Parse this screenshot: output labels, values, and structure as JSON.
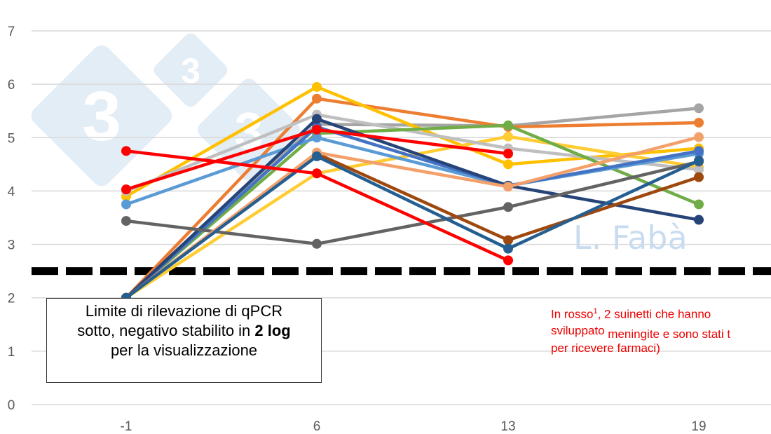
{
  "chart_data": {
    "type": "line",
    "title": "",
    "xlabel": "",
    "ylabel": "",
    "categories": [
      "-1",
      "6",
      "13",
      "19"
    ],
    "ylim": [
      0,
      7
    ],
    "yticks": [
      0,
      1,
      2,
      3,
      4,
      5,
      6,
      7
    ],
    "grid": true,
    "threshold": {
      "value": 2.5,
      "style": "dashed",
      "color": "#000000"
    },
    "series": [
      {
        "color": "#a5a5a5",
        "values": [
          2,
          5.25,
          5.22,
          5.55
        ]
      },
      {
        "color": "#ed7d31",
        "values": [
          2,
          5.73,
          5.2,
          5.28
        ]
      },
      {
        "color": "#ffc000",
        "values": [
          3.9,
          5.95,
          4.5,
          4.8
        ]
      },
      {
        "color": "#ffcc33",
        "values": [
          2,
          4.33,
          5.02,
          4.45
        ]
      },
      {
        "color": "#bfbfbf",
        "values": [
          4.0,
          5.43,
          4.8,
          4.4
        ]
      },
      {
        "color": "#70ad47",
        "values": [
          2,
          5.08,
          5.23,
          3.75
        ]
      },
      {
        "color": "#5b9bd5",
        "values": [
          3.75,
          5.0,
          4.1,
          4.7
        ]
      },
      {
        "color": "#4472c4",
        "values": [
          2,
          5.2,
          4.1,
          4.75
        ]
      },
      {
        "color": "#264478",
        "values": [
          2,
          5.35,
          4.1,
          3.46
        ]
      },
      {
        "color": "#636363",
        "values": [
          3.44,
          3.01,
          3.7,
          4.55
        ]
      },
      {
        "color": "#9e480e",
        "values": [
          2,
          4.7,
          3.08,
          4.26
        ]
      },
      {
        "color": "#f4a06a",
        "values": [
          2,
          4.72,
          4.08,
          5.01
        ]
      },
      {
        "color": "#255e91",
        "values": [
          2,
          4.65,
          2.92,
          4.57
        ]
      },
      {
        "color": "#ff0000",
        "values": [
          4.75,
          4.33,
          2.7,
          null
        ]
      },
      {
        "color": "#ff0000",
        "values": [
          4.03,
          5.15,
          4.7,
          null
        ]
      }
    ]
  },
  "note": {
    "line1": "Limite di rilevazione di qPCR",
    "line2a": "sotto, negativo stabilito in ",
    "line2b": "2 log",
    "line3": "per la visualizzazione"
  },
  "red_note": {
    "a": "In rosso",
    "sup": "1",
    "b": ", 2 suinetti che hanno",
    "c": "sviluppato",
    "d": " meningite e sono stati t",
    "e": "per ricevere farmaci)"
  },
  "watermark": {
    "author": "L. Fabà",
    "logo": "333"
  }
}
